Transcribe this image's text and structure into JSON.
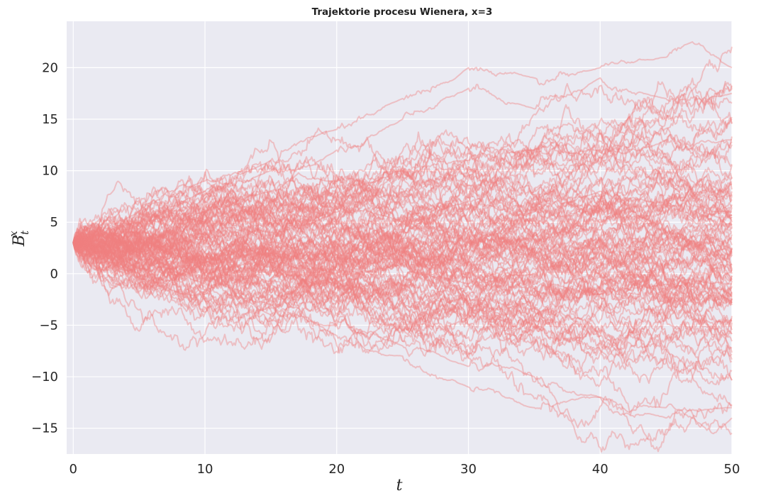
{
  "chart_data": {
    "type": "line",
    "title": "Trajektorie procesu Wienera, x=3",
    "xlabel": "t",
    "ylabel": {
      "base": "B",
      "subscript": "t",
      "superscript": "x"
    },
    "xlim": [
      -0.5,
      50
    ],
    "ylim": [
      -17.5,
      24.5
    ],
    "x_ticks": [
      0,
      10,
      20,
      30,
      40,
      50
    ],
    "y_ticks": [
      -15,
      -10,
      -5,
      0,
      5,
      10,
      15,
      20
    ],
    "x_tick_labels": [
      "0",
      "10",
      "20",
      "30",
      "40",
      "50"
    ],
    "y_tick_labels": [
      "−15",
      "−10",
      "−5",
      "0",
      "5",
      "10",
      "15",
      "20"
    ],
    "grid": true,
    "legend": "none",
    "background": "#eaeaf2",
    "line_color": "#f08080",
    "line_opacity": 0.4,
    "process": {
      "start_value": 3,
      "t_start": 0,
      "t_end": 50,
      "num_trajectories": 100
    },
    "series": [
      {
        "t": [
          0,
          5,
          10,
          15,
          20,
          25,
          30,
          35,
          40,
          45,
          47,
          50
        ],
        "y": [
          3,
          6,
          9,
          11,
          14,
          17,
          20,
          19,
          20,
          21,
          22.5,
          20
        ]
      },
      {
        "t": [
          0,
          5,
          10,
          15,
          20,
          25,
          30,
          35,
          40,
          45,
          50
        ],
        "y": [
          3,
          5,
          8,
          10,
          12,
          15,
          18,
          16,
          19,
          17,
          17.5
        ]
      },
      {
        "t": [
          0,
          5,
          10,
          15,
          20,
          25,
          30,
          35,
          40,
          45,
          50
        ],
        "y": [
          3,
          1,
          -1,
          -4,
          -6,
          -8,
          -11,
          -13,
          -12,
          -14,
          -13
        ]
      },
      {
        "t": [
          0,
          5,
          10,
          15,
          20,
          25,
          30,
          35,
          40,
          45,
          48,
          50
        ],
        "y": [
          3,
          0,
          -2,
          -3,
          -5,
          -7,
          -9,
          -10,
          -12,
          -13,
          -15,
          -14
        ]
      },
      {
        "t": [
          0,
          5,
          10,
          15,
          20,
          25,
          30,
          35,
          40,
          45,
          50
        ],
        "y": [
          3,
          4,
          5,
          4,
          6,
          5,
          7,
          6,
          8,
          7,
          6
        ]
      },
      {
        "t": [
          0,
          5,
          10,
          15,
          20,
          25,
          30,
          35,
          40,
          45,
          50
        ],
        "y": [
          3,
          2,
          1,
          2,
          0,
          1,
          -1,
          0,
          -2,
          -1,
          -1
        ]
      },
      {
        "t": [
          0,
          5,
          10,
          15,
          20,
          25,
          30,
          35,
          40,
          45,
          50
        ],
        "y": [
          3,
          5,
          6,
          8,
          9,
          10,
          11,
          12,
          12,
          13,
          13
        ]
      }
    ]
  }
}
